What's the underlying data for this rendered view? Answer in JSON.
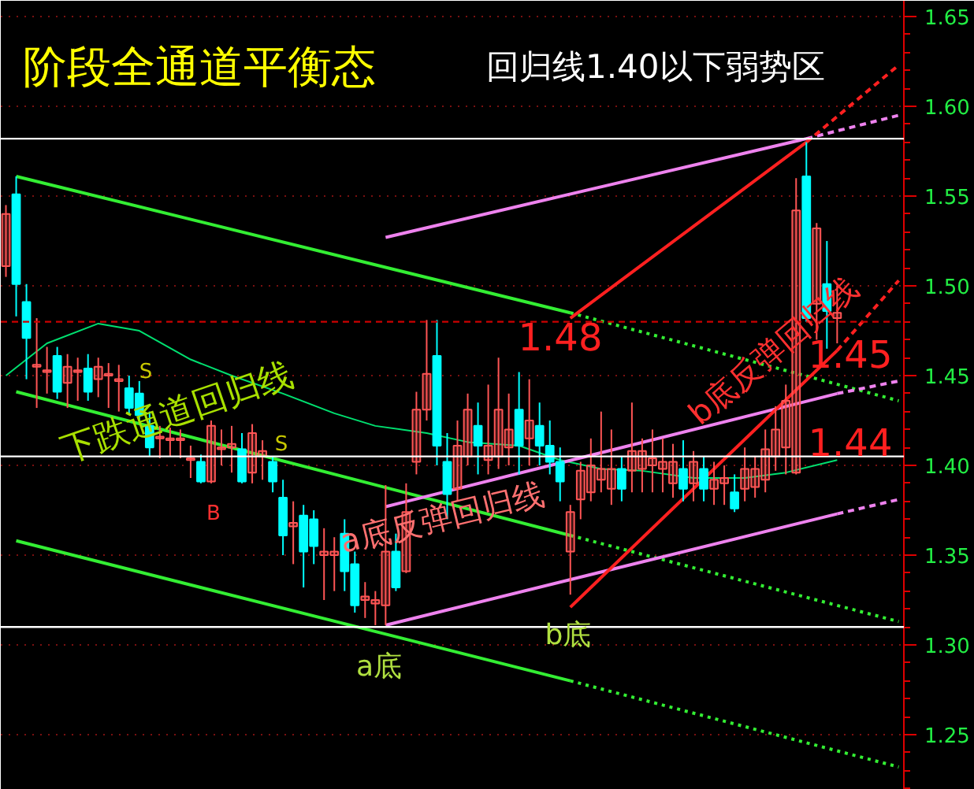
{
  "chart_data": {
    "type": "candlestick",
    "title": "阶段全通道平衡态",
    "subtitle": "回归线1.40以下弱势区",
    "categories": [
      null,
      null,
      null,
      null,
      null,
      null,
      null,
      null,
      null,
      null,
      null,
      null,
      null,
      null,
      null,
      null,
      null,
      null,
      null,
      null,
      null,
      null,
      null,
      null,
      null,
      null,
      null,
      null,
      null,
      null,
      null,
      null,
      null,
      null,
      null,
      null,
      null,
      null,
      null,
      null,
      null,
      null,
      null,
      null,
      null,
      null,
      null,
      null,
      null,
      null,
      null,
      null,
      null,
      null,
      null,
      null,
      null,
      null,
      null,
      null,
      null,
      null,
      null,
      null,
      null,
      null,
      null,
      null,
      null,
      null,
      null,
      null,
      null,
      null,
      null,
      null,
      null,
      null,
      null,
      null,
      null,
      null,
      null,
      null,
      null,
      null,
      null,
      null
    ],
    "ohlc": [
      [
        1.511,
        1.545,
        1.505,
        1.54
      ],
      [
        1.551,
        1.561,
        1.483,
        1.501
      ],
      [
        1.491,
        1.501,
        1.448,
        1.471
      ],
      [
        1.455,
        1.482,
        1.432,
        1.456
      ],
      [
        1.452,
        1.466,
        1.44,
        1.453
      ],
      [
        1.461,
        1.466,
        1.437,
        1.441
      ],
      [
        1.446,
        1.462,
        1.432,
        1.455
      ],
      [
        1.452,
        1.46,
        1.436,
        1.453
      ],
      [
        1.454,
        1.462,
        1.436,
        1.441
      ],
      [
        1.448,
        1.46,
        1.438,
        1.455
      ],
      [
        1.45,
        1.457,
        1.432,
        1.451
      ],
      [
        1.447,
        1.456,
        1.43,
        1.448
      ],
      [
        1.443,
        1.45,
        1.428,
        1.432
      ],
      [
        1.44,
        1.447,
        1.425,
        1.428
      ],
      [
        1.422,
        1.43,
        1.405,
        1.41
      ],
      [
        1.415,
        1.422,
        1.404,
        1.416
      ],
      [
        1.414,
        1.421,
        1.405,
        1.415
      ],
      [
        1.414,
        1.42,
        1.404,
        1.415
      ],
      [
        1.403,
        1.411,
        1.393,
        1.404
      ],
      [
        1.402,
        1.406,
        1.39,
        1.391
      ],
      [
        1.391,
        1.425,
        1.39,
        1.422
      ],
      [
        1.409,
        1.42,
        1.4,
        1.41
      ],
      [
        1.41,
        1.422,
        1.396,
        1.412
      ],
      [
        1.409,
        1.418,
        1.39,
        1.391
      ],
      [
        1.396,
        1.423,
        1.39,
        1.418
      ],
      [
        1.405,
        1.414,
        1.392,
        1.408
      ],
      [
        1.402,
        1.405,
        1.385,
        1.391
      ],
      [
        1.382,
        1.392,
        1.35,
        1.361
      ],
      [
        1.366,
        1.38,
        1.345,
        1.368
      ],
      [
        1.372,
        1.378,
        1.332,
        1.352
      ],
      [
        1.37,
        1.375,
        1.345,
        1.355
      ],
      [
        1.35,
        1.365,
        1.325,
        1.352
      ],
      [
        1.35,
        1.36,
        1.33,
        1.352
      ],
      [
        1.362,
        1.37,
        1.33,
        1.341
      ],
      [
        1.345,
        1.352,
        1.318,
        1.322
      ],
      [
        1.325,
        1.335,
        1.315,
        1.327
      ],
      [
        1.323,
        1.33,
        1.311,
        1.325
      ],
      [
        1.322,
        1.389,
        1.311,
        1.352
      ],
      [
        1.352,
        1.362,
        1.33,
        1.332
      ],
      [
        1.341,
        1.39,
        1.34,
        1.374
      ],
      [
        1.402,
        1.441,
        1.395,
        1.431
      ],
      [
        1.431,
        1.481,
        1.425,
        1.451
      ],
      [
        1.461,
        1.481,
        1.4,
        1.411
      ],
      [
        1.402,
        1.418,
        1.37,
        1.384
      ],
      [
        1.387,
        1.425,
        1.38,
        1.411
      ],
      [
        1.405,
        1.44,
        1.4,
        1.431
      ],
      [
        1.422,
        1.435,
        1.395,
        1.411
      ],
      [
        1.403,
        1.445,
        1.395,
        1.411
      ],
      [
        1.405,
        1.46,
        1.398,
        1.431
      ],
      [
        1.41,
        1.44,
        1.4,
        1.42
      ],
      [
        1.431,
        1.452,
        1.395,
        1.411
      ],
      [
        1.415,
        1.448,
        1.4,
        1.425
      ],
      [
        1.422,
        1.435,
        1.4,
        1.411
      ],
      [
        1.411,
        1.425,
        1.395,
        1.402
      ],
      [
        1.402,
        1.41,
        1.38,
        1.391
      ],
      [
        1.352,
        1.378,
        1.328,
        1.374
      ],
      [
        1.381,
        1.402,
        1.37,
        1.397
      ],
      [
        1.385,
        1.415,
        1.38,
        1.4
      ],
      [
        1.392,
        1.43,
        1.385,
        1.398
      ],
      [
        1.387,
        1.42,
        1.378,
        1.398
      ],
      [
        1.398,
        1.405,
        1.38,
        1.387
      ],
      [
        1.397,
        1.435,
        1.385,
        1.408
      ],
      [
        1.398,
        1.415,
        1.385,
        1.408
      ],
      [
        1.4,
        1.42,
        1.385,
        1.404
      ],
      [
        1.398,
        1.415,
        1.385,
        1.402
      ],
      [
        1.39,
        1.412,
        1.382,
        1.402
      ],
      [
        1.398,
        1.414,
        1.38,
        1.387
      ],
      [
        1.39,
        1.408,
        1.38,
        1.402
      ],
      [
        1.398,
        1.405,
        1.38,
        1.387
      ],
      [
        1.387,
        1.402,
        1.378,
        1.392
      ],
      [
        1.39,
        1.4,
        1.378,
        1.393
      ],
      [
        1.385,
        1.395,
        1.374,
        1.376
      ],
      [
        1.387,
        1.41,
        1.38,
        1.398
      ],
      [
        1.388,
        1.405,
        1.382,
        1.398
      ],
      [
        1.392,
        1.42,
        1.385,
        1.409
      ],
      [
        1.405,
        1.433,
        1.397,
        1.42
      ],
      [
        1.41,
        1.445,
        1.395,
        1.436
      ],
      [
        1.396,
        1.56,
        1.395,
        1.542
      ],
      [
        1.561,
        1.58,
        1.48,
        1.482
      ],
      [
        1.49,
        1.535,
        1.47,
        1.532
      ],
      [
        1.501,
        1.525,
        1.465,
        1.486
      ],
      [
        1.482,
        1.5,
        1.468,
        1.485
      ],
      null,
      null,
      null,
      null,
      null,
      null
    ],
    "colors": [
      "#ff5555",
      "#00ffff",
      "#00ffff",
      "#ff5555",
      "#ff5555",
      "#00ffff",
      "#ff5555",
      "#ff5555",
      "#00ffff",
      "#ff5555",
      "#ff5555",
      "#ff5555",
      "#00ffff",
      "#00ffff",
      "#00ffff",
      "#ff5555",
      "#ff5555",
      "#ff5555",
      "#ff5555",
      "#00ffff",
      "#ff5555",
      "#ff5555",
      "#ff5555",
      "#00ffff",
      "#ff5555",
      "#ff5555",
      "#00ffff",
      "#00ffff",
      "#ff5555",
      "#00ffff",
      "#00ffff",
      "#ff5555",
      "#ff5555",
      "#00ffff",
      "#00ffff",
      "#ff5555",
      "#ff5555",
      "#ff5555",
      "#00ffff",
      "#ff5555",
      "#ff5555",
      "#ff5555",
      "#00ffff",
      "#00ffff",
      "#ff5555",
      "#ff5555",
      "#00ffff",
      "#ff5555",
      "#ff5555",
      "#ff5555",
      "#00ffff",
      "#ff5555",
      "#00ffff",
      "#00ffff",
      "#00ffff",
      "#ff5555",
      "#ff5555",
      "#ff5555",
      "#ff5555",
      "#ff5555",
      "#00ffff",
      "#ff5555",
      "#ff5555",
      "#ff5555",
      "#ff5555",
      "#ff5555",
      "#00ffff",
      "#ff5555",
      "#00ffff",
      "#ff5555",
      "#ff5555",
      "#00ffff",
      "#ff5555",
      "#ff5555",
      "#ff5555",
      "#ff5555",
      "#ff5555",
      "#ff5555",
      "#00ffff",
      "#ff5555",
      "#00ffff",
      "#ff5555",
      null,
      null,
      null,
      null,
      null,
      null
    ],
    "series": [
      {
        "type": "line",
        "color": "#00e070",
        "line_style": "solid",
        "values": [
          1.45,
          null,
          null,
          null,
          1.468,
          null,
          null,
          null,
          null,
          1.479,
          null,
          null,
          null,
          1.475,
          null,
          null,
          null,
          null,
          1.459,
          null,
          null,
          null,
          1.45,
          null,
          null,
          null,
          null,
          1.44,
          null,
          null,
          null,
          null,
          1.429,
          null,
          null,
          null,
          1.422,
          null,
          null,
          null,
          null,
          1.418,
          null,
          null,
          null,
          1.413,
          null,
          null,
          null,
          null,
          1.411,
          null,
          null,
          null,
          1.403,
          null,
          null,
          null,
          1.398,
          null,
          null,
          null,
          1.397,
          null,
          null,
          null,
          null,
          1.393,
          null,
          null,
          null,
          null,
          1.393,
          null,
          null,
          null,
          1.396,
          null,
          null,
          null,
          null,
          1.403,
          null,
          null,
          null,
          null,
          null,
          null
        ]
      },
      {
        "type": "line",
        "color": "#33ee33",
        "line_style": "solid",
        "values": [
          null,
          1.561,
          null,
          null,
          null,
          null,
          null,
          null,
          null,
          null,
          null,
          null,
          null,
          null,
          null,
          null,
          null,
          null,
          null,
          null,
          null,
          null,
          null,
          null,
          null,
          null,
          null,
          null,
          null,
          null,
          null,
          null,
          null,
          null,
          null,
          null,
          null,
          null,
          null,
          null,
          null,
          null,
          null,
          null,
          null,
          null,
          null,
          null,
          null,
          null,
          null,
          null,
          null,
          null,
          null,
          1.485,
          null,
          null,
          null,
          null,
          null,
          null,
          null,
          null,
          null,
          null,
          null,
          null,
          null,
          null,
          null,
          null,
          null,
          null,
          null,
          null,
          null,
          null,
          null,
          null,
          null,
          null,
          null,
          null,
          null,
          null,
          null,
          null
        ]
      },
      {
        "type": "line",
        "color": "#33ee33",
        "line_style": "dotted",
        "values": [
          null,
          null,
          null,
          null,
          null,
          null,
          null,
          null,
          null,
          null,
          null,
          null,
          null,
          null,
          null,
          null,
          null,
          null,
          null,
          null,
          null,
          null,
          null,
          null,
          null,
          null,
          null,
          null,
          null,
          null,
          null,
          null,
          null,
          null,
          null,
          null,
          null,
          null,
          null,
          null,
          null,
          null,
          null,
          null,
          null,
          null,
          null,
          null,
          null,
          null,
          null,
          null,
          null,
          null,
          null,
          1.485,
          null,
          null,
          null,
          null,
          null,
          null,
          null,
          null,
          null,
          null,
          null,
          null,
          null,
          null,
          null,
          null,
          null,
          null,
          null,
          null,
          null,
          null,
          null,
          null,
          null,
          null,
          null,
          null,
          null,
          null,
          null,
          1.436
        ]
      },
      {
        "type": "line",
        "color": "#33ee33",
        "line_style": "solid",
        "values": [
          null,
          1.441,
          null,
          null,
          null,
          null,
          null,
          null,
          null,
          null,
          null,
          null,
          null,
          null,
          null,
          null,
          null,
          null,
          null,
          null,
          null,
          null,
          null,
          null,
          null,
          null,
          null,
          null,
          null,
          null,
          null,
          null,
          null,
          null,
          null,
          null,
          null,
          null,
          null,
          null,
          null,
          null,
          null,
          null,
          null,
          null,
          null,
          null,
          null,
          null,
          null,
          null,
          null,
          null,
          null,
          1.361,
          null,
          null,
          null,
          null,
          null,
          null,
          null,
          null,
          null,
          null,
          null,
          null,
          null,
          null,
          null,
          null,
          null,
          null,
          null,
          null,
          null,
          null,
          null,
          null,
          null,
          null,
          null,
          null,
          null,
          null,
          null,
          null
        ]
      },
      {
        "type": "line",
        "color": "#33ee33",
        "line_style": "dotted",
        "values": [
          null,
          null,
          null,
          null,
          null,
          null,
          null,
          null,
          null,
          null,
          null,
          null,
          null,
          null,
          null,
          null,
          null,
          null,
          null,
          null,
          null,
          null,
          null,
          null,
          null,
          null,
          null,
          null,
          null,
          null,
          null,
          null,
          null,
          null,
          null,
          null,
          null,
          null,
          null,
          null,
          null,
          null,
          null,
          null,
          null,
          null,
          null,
          null,
          null,
          null,
          null,
          null,
          null,
          null,
          null,
          1.361,
          null,
          null,
          null,
          null,
          null,
          null,
          null,
          null,
          null,
          null,
          null,
          null,
          null,
          null,
          null,
          null,
          null,
          null,
          null,
          null,
          null,
          null,
          null,
          null,
          null,
          null,
          null,
          null,
          null,
          null,
          null,
          1.313
        ]
      },
      {
        "type": "line",
        "color": "#33ee33",
        "line_style": "solid",
        "values": [
          null,
          1.358,
          null,
          null,
          null,
          null,
          null,
          null,
          null,
          null,
          null,
          null,
          null,
          null,
          null,
          null,
          null,
          null,
          null,
          null,
          null,
          null,
          null,
          null,
          null,
          null,
          null,
          null,
          null,
          null,
          null,
          null,
          null,
          null,
          null,
          null,
          null,
          null,
          null,
          null,
          null,
          null,
          null,
          null,
          null,
          null,
          null,
          null,
          null,
          null,
          null,
          null,
          null,
          null,
          null,
          1.28,
          null,
          null,
          null,
          null,
          null,
          null,
          null,
          null,
          null,
          null,
          null,
          null,
          null,
          null,
          null,
          null,
          null,
          null,
          null,
          null,
          null,
          null,
          null,
          null,
          null,
          null,
          null,
          null,
          null,
          null,
          null,
          null
        ]
      },
      {
        "type": "line",
        "color": "#33ee33",
        "line_style": "dotted",
        "values": [
          null,
          null,
          null,
          null,
          null,
          null,
          null,
          null,
          null,
          null,
          null,
          null,
          null,
          null,
          null,
          null,
          null,
          null,
          null,
          null,
          null,
          null,
          null,
          null,
          null,
          null,
          null,
          null,
          null,
          null,
          null,
          null,
          null,
          null,
          null,
          null,
          null,
          null,
          null,
          null,
          null,
          null,
          null,
          null,
          null,
          null,
          null,
          null,
          null,
          null,
          null,
          null,
          null,
          null,
          null,
          1.28,
          null,
          null,
          null,
          null,
          null,
          null,
          null,
          null,
          null,
          null,
          null,
          null,
          null,
          null,
          null,
          null,
          null,
          null,
          null,
          null,
          null,
          null,
          null,
          null,
          null,
          null,
          null,
          null,
          null,
          null,
          null,
          1.232
        ]
      },
      {
        "type": "line",
        "color": "#ee82ee",
        "line_style": "solid",
        "values": [
          null,
          null,
          null,
          null,
          null,
          null,
          null,
          null,
          null,
          null,
          null,
          null,
          null,
          null,
          null,
          null,
          null,
          null,
          null,
          null,
          null,
          null,
          null,
          null,
          null,
          null,
          null,
          null,
          null,
          null,
          null,
          null,
          null,
          null,
          null,
          null,
          null,
          1.527,
          null,
          null,
          null,
          null,
          null,
          null,
          null,
          null,
          null,
          null,
          null,
          null,
          null,
          null,
          null,
          null,
          null,
          null,
          null,
          null,
          null,
          null,
          null,
          null,
          null,
          null,
          null,
          null,
          null,
          null,
          null,
          null,
          null,
          null,
          null,
          null,
          null,
          null,
          null,
          null,
          1.582,
          null,
          null,
          null,
          null,
          null,
          null,
          null,
          null,
          null
        ]
      },
      {
        "type": "line",
        "color": "#ee82ee",
        "line_style": "dashed",
        "values": [
          null,
          null,
          null,
          null,
          null,
          null,
          null,
          null,
          null,
          null,
          null,
          null,
          null,
          null,
          null,
          null,
          null,
          null,
          null,
          null,
          null,
          null,
          null,
          null,
          null,
          null,
          null,
          null,
          null,
          null,
          null,
          null,
          null,
          null,
          null,
          null,
          null,
          null,
          null,
          null,
          null,
          null,
          null,
          null,
          null,
          null,
          null,
          null,
          null,
          null,
          null,
          null,
          null,
          null,
          null,
          null,
          null,
          null,
          null,
          null,
          null,
          null,
          null,
          null,
          null,
          null,
          null,
          null,
          null,
          null,
          null,
          null,
          null,
          null,
          null,
          null,
          null,
          null,
          1.582,
          null,
          null,
          null,
          null,
          null,
          null,
          null,
          null,
          1.595
        ]
      },
      {
        "type": "line",
        "color": "#ee82ee",
        "line_style": "solid",
        "values": [
          null,
          null,
          null,
          null,
          null,
          null,
          null,
          null,
          null,
          null,
          null,
          null,
          null,
          null,
          null,
          null,
          null,
          null,
          null,
          null,
          null,
          null,
          null,
          null,
          null,
          null,
          null,
          null,
          null,
          null,
          null,
          null,
          null,
          null,
          null,
          null,
          null,
          1.377,
          null,
          null,
          null,
          null,
          null,
          null,
          null,
          null,
          null,
          null,
          null,
          null,
          null,
          null,
          null,
          null,
          null,
          null,
          null,
          null,
          null,
          null,
          null,
          null,
          null,
          null,
          null,
          null,
          null,
          null,
          null,
          null,
          null,
          null,
          null,
          null,
          null,
          null,
          null,
          null,
          null,
          null,
          null,
          1.44,
          null,
          null,
          null,
          null,
          null,
          null
        ]
      },
      {
        "type": "line",
        "color": "#ee82ee",
        "line_style": "dashed",
        "values": [
          null,
          null,
          null,
          null,
          null,
          null,
          null,
          null,
          null,
          null,
          null,
          null,
          null,
          null,
          null,
          null,
          null,
          null,
          null,
          null,
          null,
          null,
          null,
          null,
          null,
          null,
          null,
          null,
          null,
          null,
          null,
          null,
          null,
          null,
          null,
          null,
          null,
          null,
          null,
          null,
          null,
          null,
          null,
          null,
          null,
          null,
          null,
          null,
          null,
          null,
          null,
          null,
          null,
          null,
          null,
          null,
          null,
          null,
          null,
          null,
          null,
          null,
          null,
          null,
          null,
          null,
          null,
          null,
          null,
          null,
          null,
          null,
          null,
          null,
          null,
          null,
          null,
          null,
          null,
          null,
          null,
          1.44,
          null,
          null,
          null,
          null,
          null,
          1.447
        ]
      },
      {
        "type": "line",
        "color": "#ee82ee",
        "line_style": "solid",
        "values": [
          null,
          null,
          null,
          null,
          null,
          null,
          null,
          null,
          null,
          null,
          null,
          null,
          null,
          null,
          null,
          null,
          null,
          null,
          null,
          null,
          null,
          null,
          null,
          null,
          null,
          null,
          null,
          null,
          null,
          null,
          null,
          null,
          null,
          null,
          null,
          null,
          null,
          1.311,
          null,
          null,
          null,
          null,
          null,
          null,
          null,
          null,
          null,
          null,
          null,
          null,
          null,
          null,
          null,
          null,
          null,
          null,
          null,
          null,
          null,
          null,
          null,
          null,
          null,
          null,
          null,
          null,
          null,
          null,
          null,
          null,
          null,
          null,
          null,
          null,
          null,
          null,
          null,
          null,
          null,
          null,
          null,
          1.373,
          null,
          null,
          null,
          null,
          null,
          null
        ]
      },
      {
        "type": "line",
        "color": "#ee82ee",
        "line_style": "dashed",
        "values": [
          null,
          null,
          null,
          null,
          null,
          null,
          null,
          null,
          null,
          null,
          null,
          null,
          null,
          null,
          null,
          null,
          null,
          null,
          null,
          null,
          null,
          null,
          null,
          null,
          null,
          null,
          null,
          null,
          null,
          null,
          null,
          null,
          null,
          null,
          null,
          null,
          null,
          null,
          null,
          null,
          null,
          null,
          null,
          null,
          null,
          null,
          null,
          null,
          null,
          null,
          null,
          null,
          null,
          null,
          null,
          null,
          null,
          null,
          null,
          null,
          null,
          null,
          null,
          null,
          null,
          null,
          null,
          null,
          null,
          null,
          null,
          null,
          null,
          null,
          null,
          null,
          null,
          null,
          null,
          null,
          null,
          1.373,
          null,
          null,
          null,
          null,
          null,
          1.381
        ]
      },
      {
        "type": "line",
        "color": "#ff2020",
        "line_style": "solid",
        "values": [
          null,
          null,
          null,
          null,
          null,
          null,
          null,
          null,
          null,
          null,
          null,
          null,
          null,
          null,
          null,
          null,
          null,
          null,
          null,
          null,
          null,
          null,
          null,
          null,
          null,
          null,
          null,
          null,
          null,
          null,
          null,
          null,
          null,
          null,
          null,
          null,
          null,
          null,
          null,
          null,
          null,
          null,
          null,
          null,
          null,
          null,
          null,
          null,
          null,
          null,
          null,
          null,
          null,
          null,
          null,
          1.482,
          null,
          null,
          null,
          null,
          null,
          null,
          null,
          null,
          null,
          null,
          null,
          null,
          null,
          null,
          null,
          null,
          null,
          null,
          null,
          null,
          null,
          null,
          1.58,
          null,
          null,
          null,
          null,
          null,
          null,
          null,
          null,
          null
        ]
      },
      {
        "type": "line",
        "color": "#ff2020",
        "line_style": "dashed",
        "values": [
          null,
          null,
          null,
          null,
          null,
          null,
          null,
          null,
          null,
          null,
          null,
          null,
          null,
          null,
          null,
          null,
          null,
          null,
          null,
          null,
          null,
          null,
          null,
          null,
          null,
          null,
          null,
          null,
          null,
          null,
          null,
          null,
          null,
          null,
          null,
          null,
          null,
          null,
          null,
          null,
          null,
          null,
          null,
          null,
          null,
          null,
          null,
          null,
          null,
          null,
          null,
          null,
          null,
          null,
          null,
          null,
          null,
          null,
          null,
          null,
          null,
          null,
          null,
          null,
          null,
          null,
          null,
          null,
          null,
          null,
          null,
          null,
          null,
          null,
          null,
          null,
          null,
          null,
          1.58,
          null,
          null,
          null,
          null,
          null,
          null,
          null,
          null,
          1.623
        ]
      },
      {
        "type": "line",
        "color": "#ff2020",
        "line_style": "solid",
        "values": [
          null,
          null,
          null,
          null,
          null,
          null,
          null,
          null,
          null,
          null,
          null,
          null,
          null,
          null,
          null,
          null,
          null,
          null,
          null,
          null,
          null,
          null,
          null,
          null,
          null,
          null,
          null,
          null,
          null,
          null,
          null,
          null,
          null,
          null,
          null,
          null,
          null,
          null,
          null,
          null,
          null,
          null,
          null,
          null,
          null,
          null,
          null,
          null,
          null,
          null,
          null,
          null,
          null,
          null,
          null,
          1.321,
          null,
          null,
          null,
          null,
          null,
          null,
          null,
          null,
          null,
          null,
          null,
          null,
          null,
          null,
          null,
          null,
          null,
          null,
          null,
          null,
          null,
          null,
          null,
          null,
          null,
          1.464,
          null,
          null,
          null,
          null,
          null,
          null
        ]
      },
      {
        "type": "line",
        "color": "#ff2020",
        "line_style": "dashed",
        "values": [
          null,
          null,
          null,
          null,
          null,
          null,
          null,
          null,
          null,
          null,
          null,
          null,
          null,
          null,
          null,
          null,
          null,
          null,
          null,
          null,
          null,
          null,
          null,
          null,
          null,
          null,
          null,
          null,
          null,
          null,
          null,
          null,
          null,
          null,
          null,
          null,
          null,
          null,
          null,
          null,
          null,
          null,
          null,
          null,
          null,
          null,
          null,
          null,
          null,
          null,
          null,
          null,
          null,
          null,
          null,
          null,
          null,
          null,
          null,
          null,
          null,
          null,
          null,
          null,
          null,
          null,
          null,
          null,
          null,
          null,
          null,
          null,
          null,
          null,
          null,
          null,
          null,
          null,
          null,
          null,
          null,
          1.464,
          null,
          null,
          null,
          null,
          null,
          1.503
        ]
      }
    ],
    "ref_lines": [
      {
        "axis": "y",
        "value": 1.48,
        "color": "#cc0000",
        "line_style": "dashed"
      },
      {
        "axis": "y",
        "value": 1.582,
        "color": "#ffffff",
        "line_style": "solid"
      },
      {
        "axis": "y",
        "value": 1.405,
        "color": "#ffffff",
        "line_style": "solid"
      },
      {
        "axis": "y",
        "value": 1.31,
        "color": "#ffffff",
        "line_style": "solid"
      }
    ],
    "annotations": [
      "下跌通道回归线",
      "a底反弹回归线",
      "b底反弹回归线",
      "1.48",
      "1.45",
      "1.44",
      "a底",
      "b底",
      "B",
      "S",
      "S"
    ],
    "ylim": [
      1.2193,
      1.6588
    ],
    "yticks": [
      {
        "value": 1.25,
        "label": "1.25"
      },
      {
        "value": 1.3,
        "label": "1.30"
      },
      {
        "value": 1.35,
        "label": "1.35"
      },
      {
        "value": 1.4,
        "label": "1.40"
      },
      {
        "value": 1.45,
        "label": "1.45"
      },
      {
        "value": 1.5,
        "label": "1.50"
      },
      {
        "value": 1.55,
        "label": "1.55"
      },
      {
        "value": 1.6,
        "label": "1.60"
      },
      {
        "value": 1.65,
        "label": "1.65"
      }
    ],
    "grid": "y"
  }
}
